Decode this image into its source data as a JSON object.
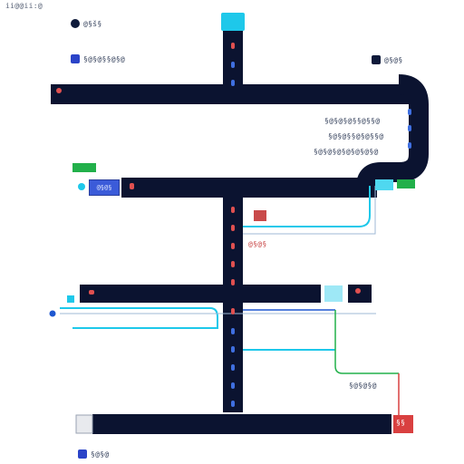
{
  "title": "ii@@ii:@",
  "legend": [
    {
      "text": "@§š§",
      "color": "#0e1a3a"
    },
    {
      "text": "§@§@§§@§@",
      "color": "#2b44c8"
    },
    {
      "text": "@§@§",
      "color": "#0e1a3a"
    }
  ],
  "notes_right": [
    "§@§@§@§§@§§@",
    "§@§@§§@§@§§@",
    "§@§@§@§@§@§@§@"
  ],
  "blue_button": "@§@§",
  "red_label": "@§@§",
  "bottom_note": "§@§@§@",
  "bottom_legend": "§@§@",
  "end_badge": "§§",
  "colors": {
    "road": "#0b1330",
    "cyan": "#1ec8ea",
    "green": "#22b04a",
    "red": "#d94040",
    "blue": "#3b5bd9",
    "lane_red": "#e05050",
    "lane_blue": "#3f6fe0"
  }
}
